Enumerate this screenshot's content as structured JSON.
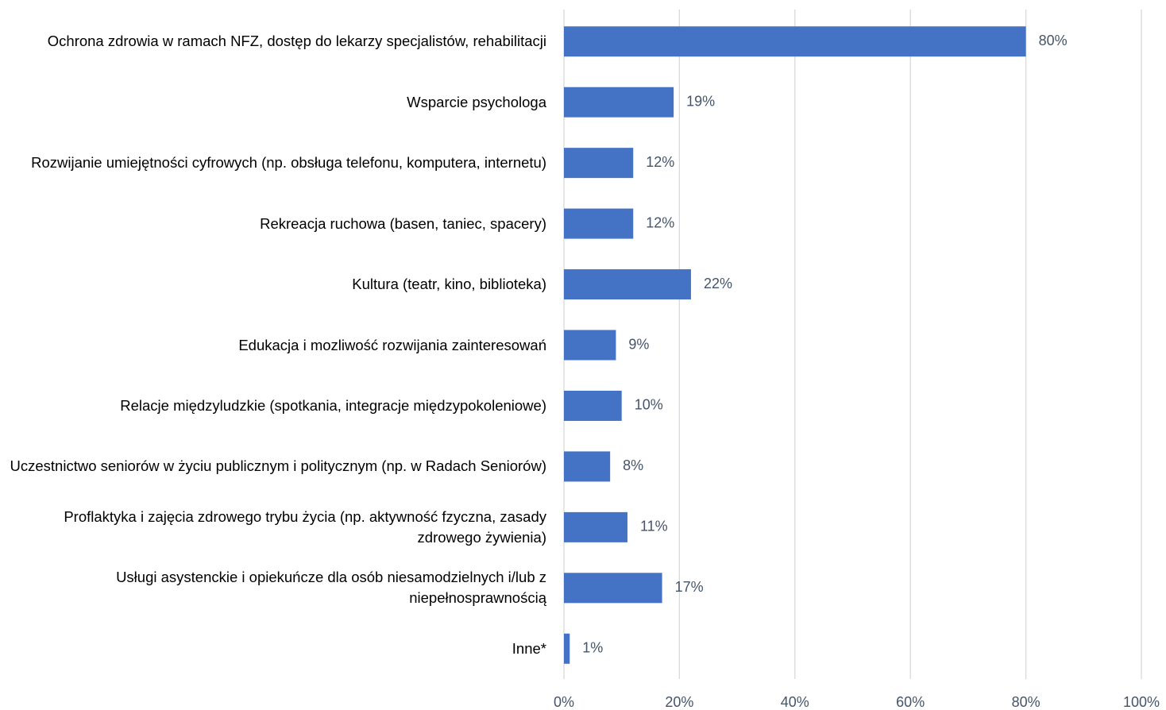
{
  "chart_data": {
    "type": "bar",
    "orientation": "horizontal",
    "categories": [
      "Ochrona zdrowia w ramach NFZ, dostęp do lekarzy specjalistów, rehabilitacji",
      "Wsparcie psychologa",
      "Rozwijanie umiejętności cyfrowych (np. obsługa telefonu, komputera, internetu)",
      "Rekreacja ruchowa (basen, taniec, spacery)",
      "Kultura (teatr, kino, biblioteka)",
      "Edukacja i mozliwość rozwijania zainteresowań",
      "Relacje międzyludzkie (spotkania, integracje międzypokoleniowe)",
      "Uczestnictwo seniorów w życiu publicznym i politycznym (np. w Radach Seniorów)",
      "Proflaktyka i zajęcia zdrowego trybu życia (np. aktywność fzyczna, zasady zdrowego żywienia)",
      "Usługi asystenckie i opiekuńcze dla osób niesamodzielnych i/lub z niepełnosprawnością",
      "Inne*"
    ],
    "values": [
      80,
      19,
      12,
      12,
      22,
      9,
      10,
      8,
      11,
      17,
      1
    ],
    "value_labels": [
      "80%",
      "19%",
      "12%",
      "12%",
      "22%",
      "9%",
      "10%",
      "8%",
      "11%",
      "17%",
      "1%"
    ],
    "color": "#4472c4",
    "xlim": [
      0,
      100
    ],
    "xticks": [
      {
        "value": 0,
        "label": "0%"
      },
      {
        "value": 20,
        "label": "20%"
      },
      {
        "value": 40,
        "label": "40%"
      },
      {
        "value": 60,
        "label": "60%"
      },
      {
        "value": 80,
        "label": "80%"
      },
      {
        "value": 100,
        "label": "100%"
      }
    ],
    "grid": true
  }
}
